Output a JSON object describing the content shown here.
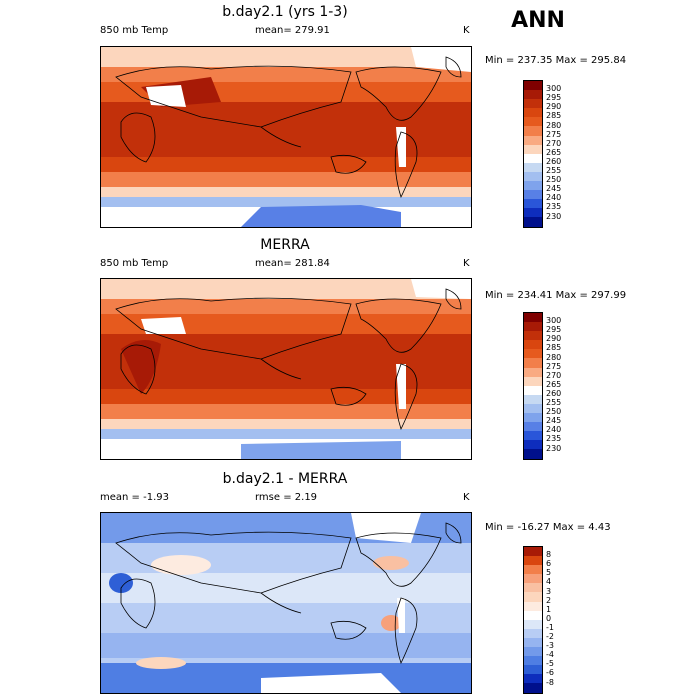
{
  "header": {
    "season": "ANN"
  },
  "panels": [
    {
      "title": "b.day2.1 (yrs 1-3)",
      "left_label": "850 mb Temp",
      "center_label": "mean= 279.91",
      "units": "K",
      "range_label": "Min = 237.35 Max = 295.84",
      "colorbar_labels": [
        "300",
        "295",
        "290",
        "285",
        "280",
        "275",
        "270",
        "265",
        "260",
        "255",
        "250",
        "245",
        "240",
        "235",
        "230"
      ]
    },
    {
      "title": "MERRA",
      "left_label": "850 mb Temp",
      "center_label": "mean= 281.84",
      "units": "K",
      "range_label": "Min = 234.41 Max = 297.99",
      "colorbar_labels": [
        "300",
        "295",
        "290",
        "285",
        "280",
        "275",
        "270",
        "265",
        "260",
        "255",
        "250",
        "245",
        "240",
        "235",
        "230"
      ]
    },
    {
      "title": "b.day2.1 - MERRA",
      "left_label": "mean =  -1.93",
      "center_label": "rmse =   2.19",
      "units": "K",
      "range_label": "Min = -16.27 Max =   4.43",
      "colorbar_labels": [
        "8",
        "6",
        "5",
        "4",
        "3",
        "2",
        "1",
        "0",
        "-1",
        "-2",
        "-3",
        "-4",
        "-5",
        "-6",
        "-8"
      ]
    }
  ],
  "colors": {
    "abs_scale": [
      "#7f0000",
      "#a71a06",
      "#c2300a",
      "#d9460f",
      "#e65a1e",
      "#f27f4a",
      "#f9aa82",
      "#fcd6bd",
      "#ffffff",
      "#c6d9f2",
      "#a3bff0",
      "#7fa3ec",
      "#5880e6",
      "#2a56d9",
      "#0e2dbd",
      "#00108c"
    ],
    "diff_scale": [
      "#a71a06",
      "#d9460f",
      "#f27f4a",
      "#f7a07a",
      "#f9c0a2",
      "#fcd6bd",
      "#fdebe0",
      "#ffffff",
      "#dce7f8",
      "#b8cdf4",
      "#96b4f0",
      "#739aea",
      "#4f7ee3",
      "#2e5fd6",
      "#0e2dbd",
      "#00108c"
    ]
  }
}
